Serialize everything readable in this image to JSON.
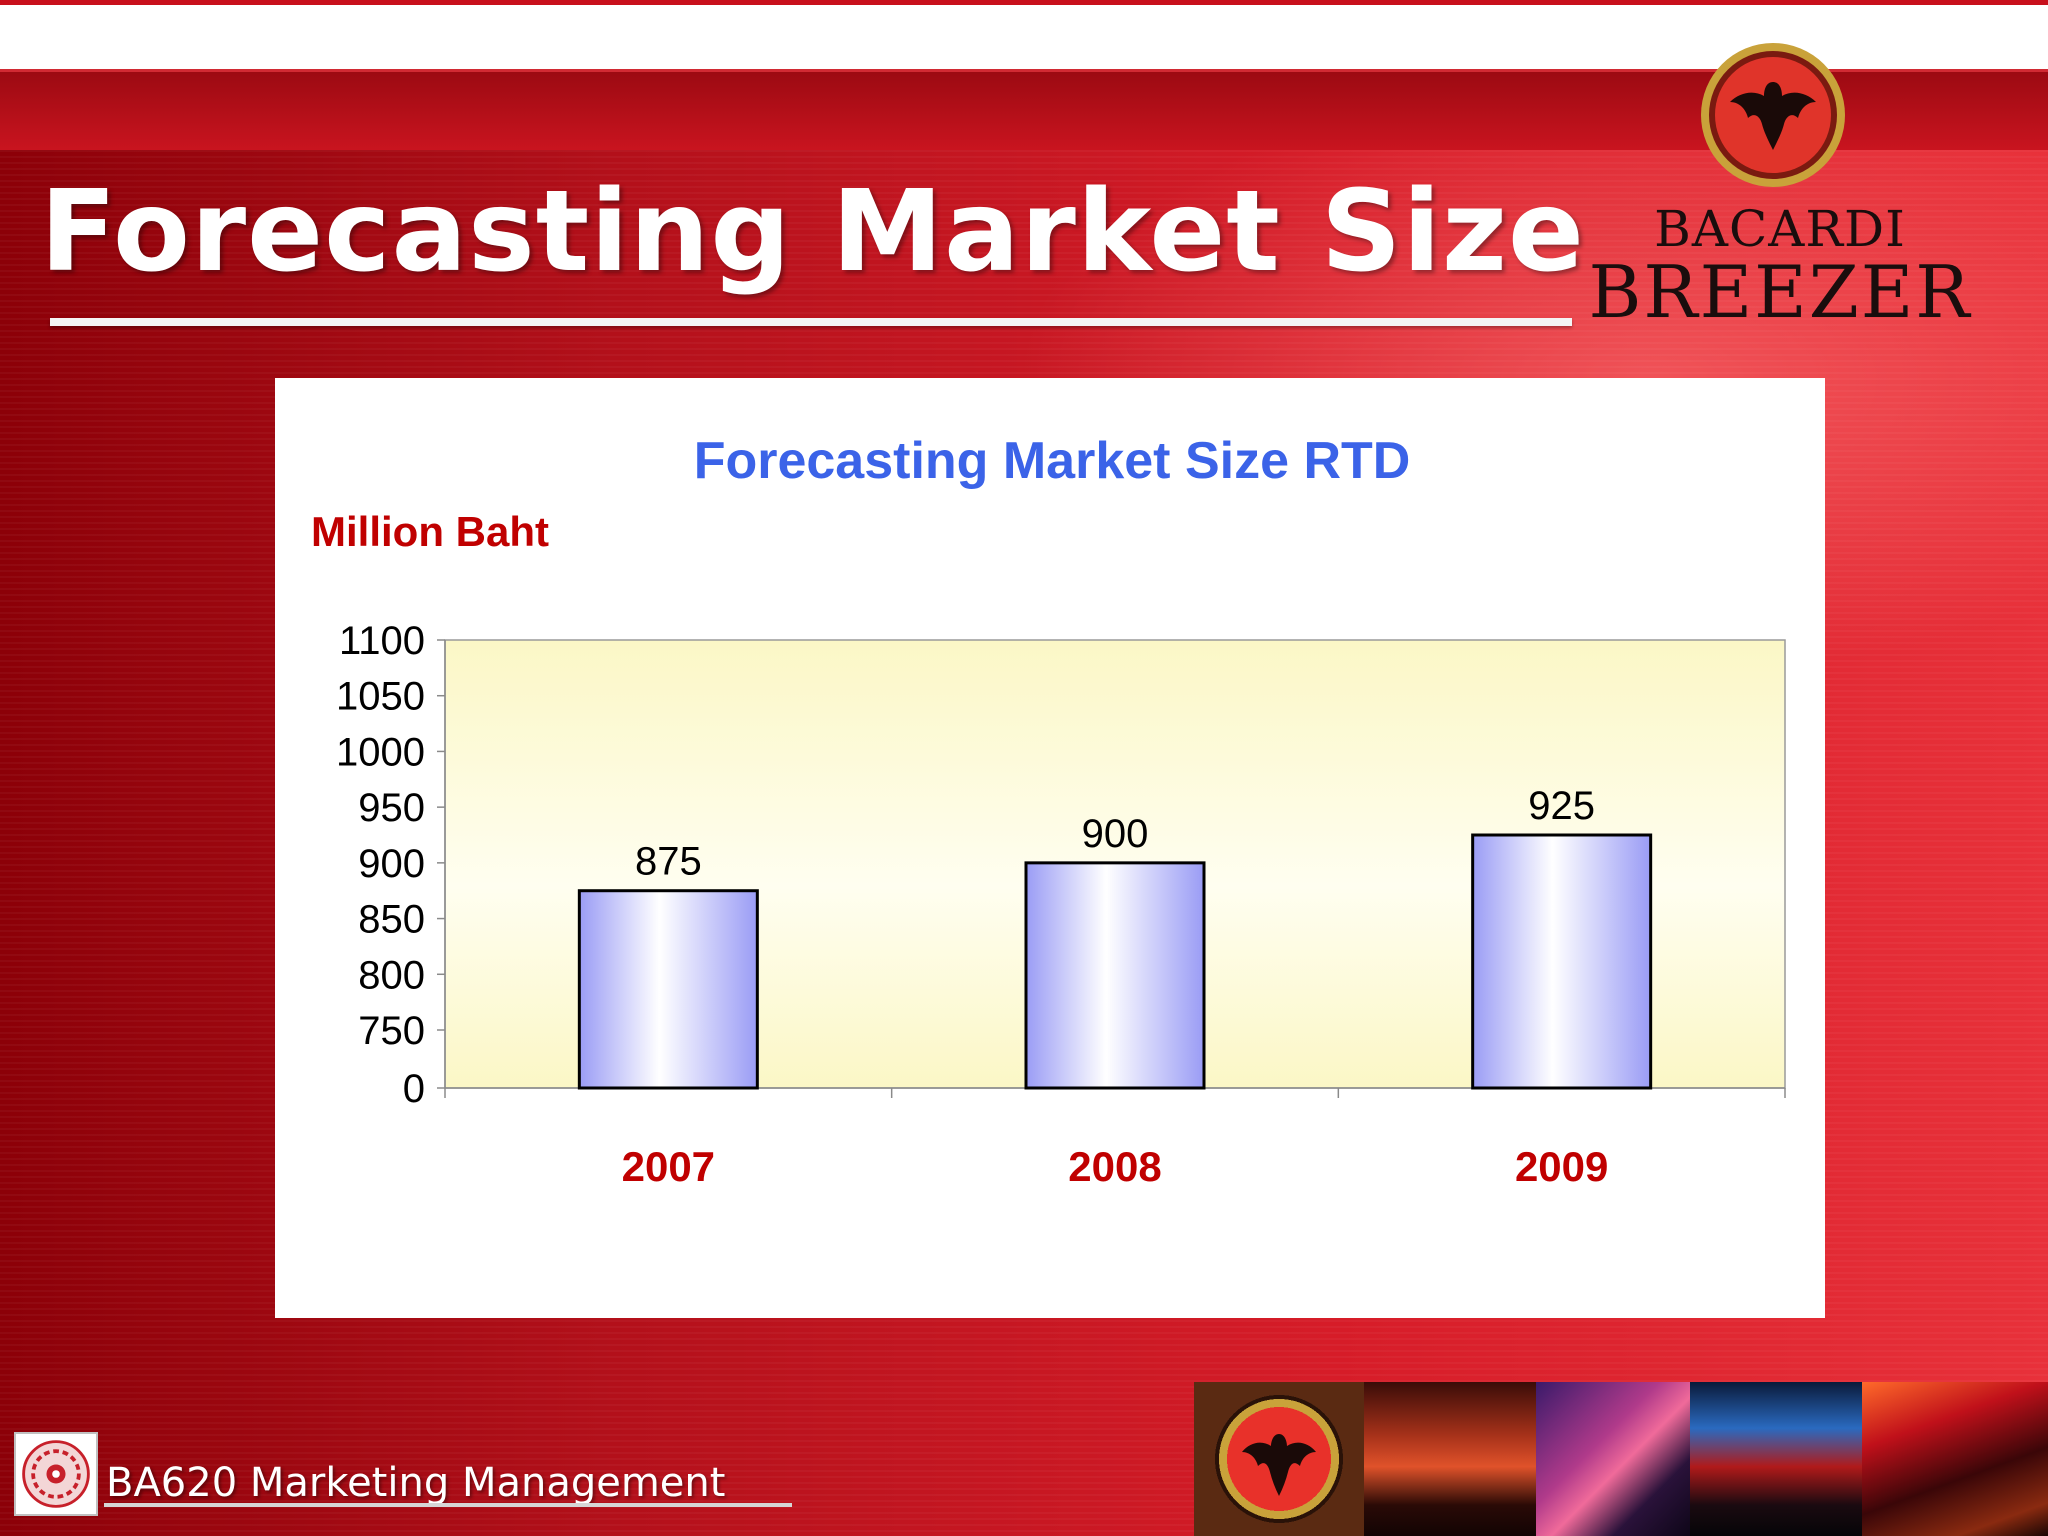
{
  "slide": {
    "title": "Forecasting Market Size",
    "footer": "BA620 Marketing Management"
  },
  "brand": {
    "line1": "BACARDI",
    "line2": "BREEZER"
  },
  "colors": {
    "title_blue": "#3b63e8",
    "label_red": "#c00000",
    "plot_bg": "#fcf9c9",
    "bar_edge": "#9a9cf5"
  },
  "chart_data": {
    "type": "bar",
    "title": "Forecasting Market Size RTD",
    "ylabel": "Million Baht",
    "categories": [
      "2007",
      "2008",
      "2009"
    ],
    "values": [
      875,
      900,
      925
    ],
    "data_labels": [
      "875",
      "900",
      "925"
    ],
    "y_ticks": [
      "1100",
      "1050",
      "1000",
      "950",
      "900",
      "850",
      "800",
      "750",
      "0"
    ],
    "ylim": [
      0,
      1100
    ],
    "axis_break": "0 to 750",
    "grid": false,
    "legend": "none"
  }
}
